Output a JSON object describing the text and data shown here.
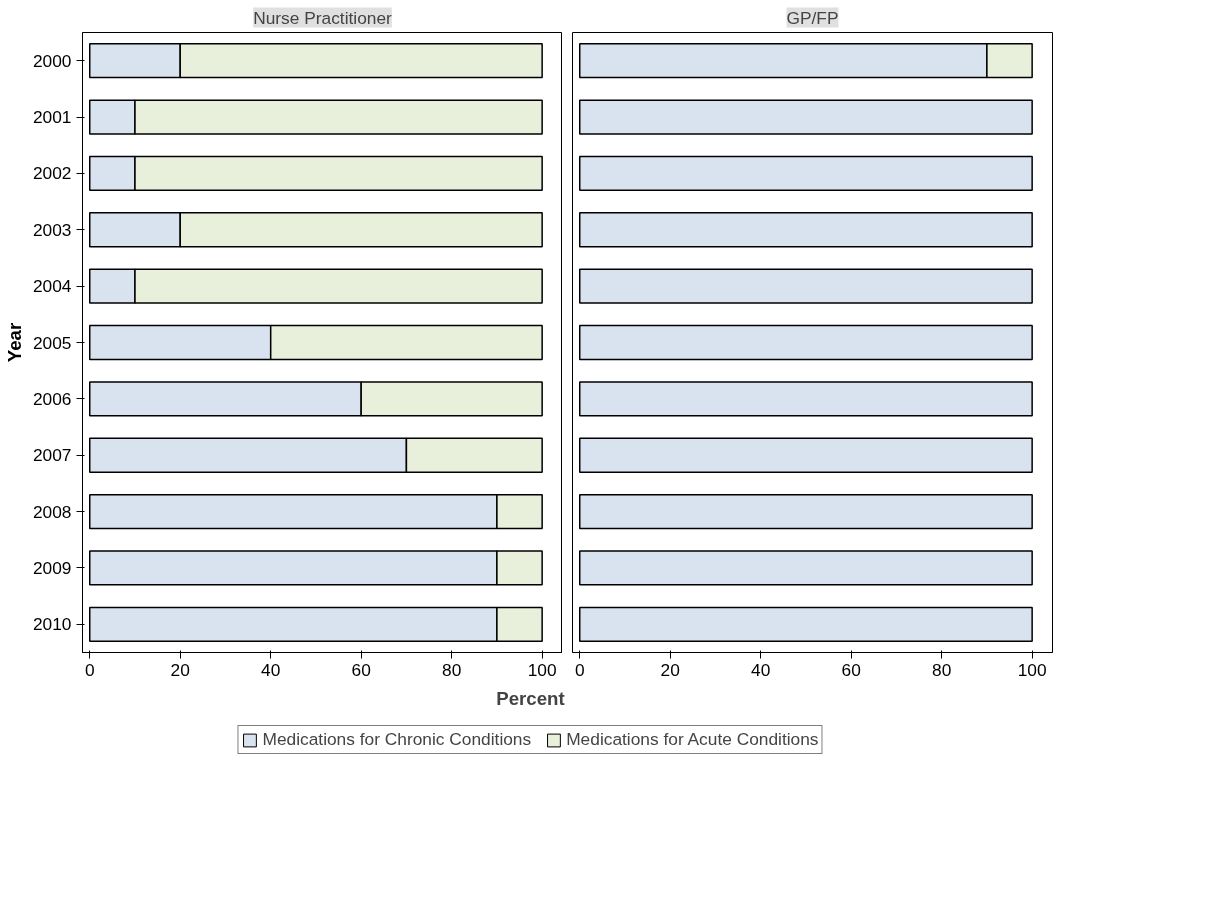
{
  "chart_data": [
    {
      "type": "bar",
      "orientation": "horizontal",
      "stacked": true,
      "title": "Nurse Practitioner",
      "xlabel": "Percent",
      "ylabel": "Year",
      "categories": [
        "2000",
        "2001",
        "2002",
        "2003",
        "2004",
        "2005",
        "2006",
        "2007",
        "2008",
        "2009",
        "2010"
      ],
      "series": [
        {
          "name": "Medications for Chronic Conditions",
          "color": "#d9e3f0",
          "values": [
            20,
            10,
            10,
            20,
            10,
            40,
            60,
            70,
            90,
            90,
            90
          ]
        },
        {
          "name": "Medications for Acute Conditions",
          "color": "#e8efdb",
          "values": [
            80,
            90,
            90,
            80,
            90,
            60,
            40,
            30,
            10,
            10,
            10
          ]
        }
      ],
      "xlim": [
        -1.6,
        104.5
      ],
      "xticks": [
        0,
        20,
        40,
        60,
        80,
        100
      ],
      "grid": false,
      "legend": "bottom"
    },
    {
      "type": "bar",
      "orientation": "horizontal",
      "stacked": true,
      "title": "GP/FP",
      "categories": [
        "2000",
        "2001",
        "2002",
        "2003",
        "2004",
        "2005",
        "2006",
        "2007",
        "2008",
        "2009",
        "2010"
      ],
      "series": [
        {
          "color": "#d9e3f0",
          "values": [
            90,
            100,
            100,
            100,
            100,
            100,
            100,
            100,
            100,
            100,
            100
          ]
        },
        {
          "color": "#e8efdb",
          "values": [
            10,
            0,
            0,
            0,
            0,
            0,
            0,
            0,
            0,
            0,
            0
          ]
        }
      ],
      "xlim": [
        -1.6,
        104.5
      ],
      "xticks": [
        0,
        20,
        40,
        60,
        80,
        100
      ],
      "grid": false,
      "tick_labels": "x"
    }
  ]
}
